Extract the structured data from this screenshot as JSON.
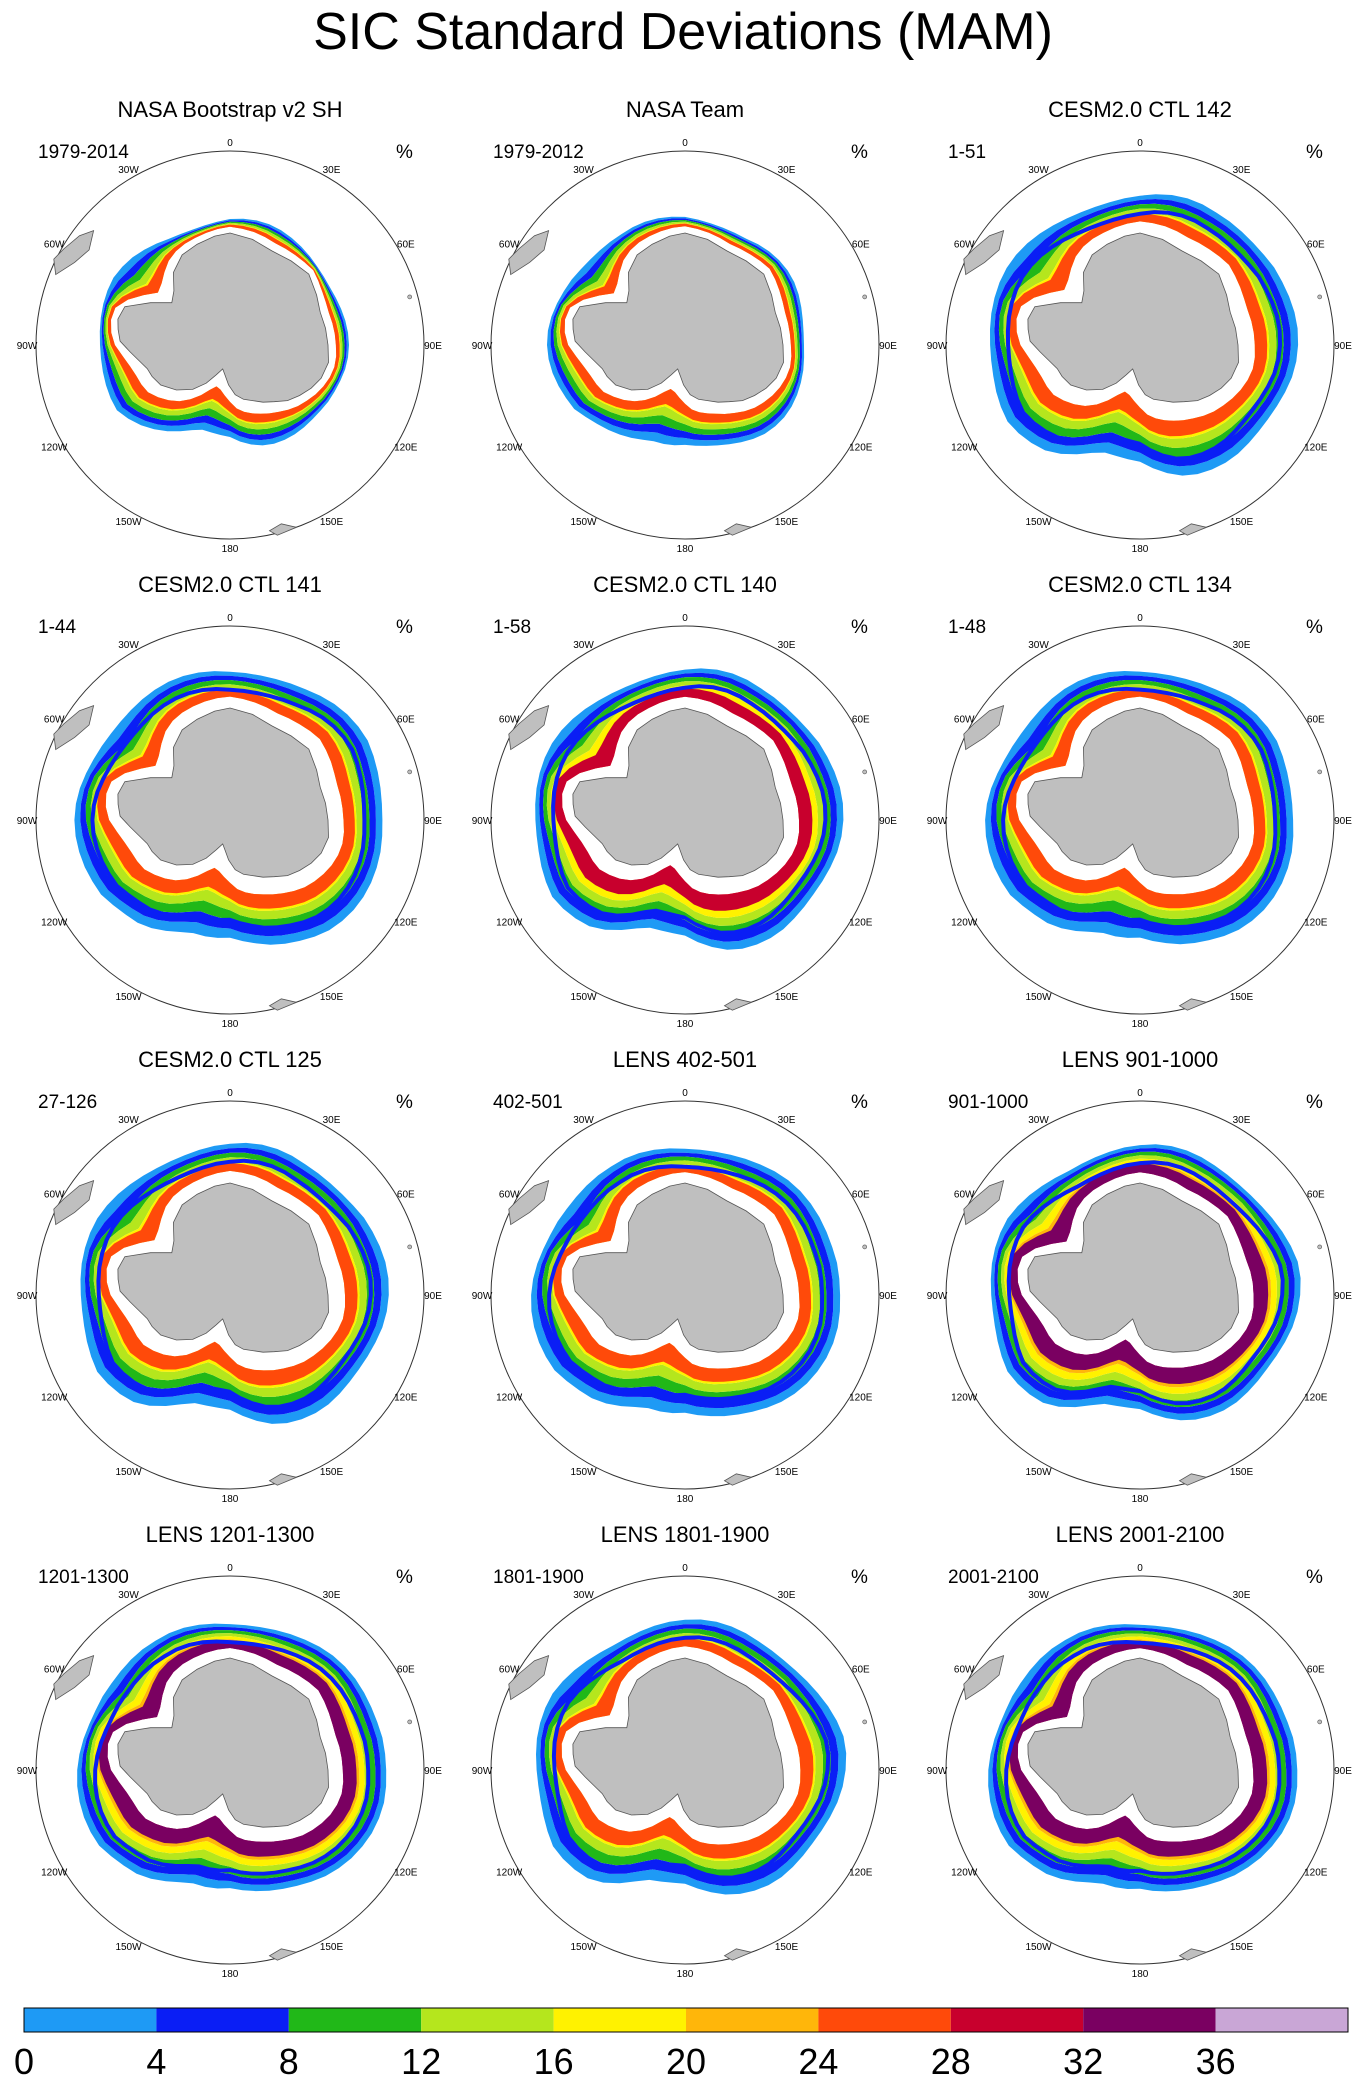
{
  "figure_title": "SIC Standard Deviations (MAM)",
  "units_symbol": "%",
  "longitude_labels": [
    "0",
    "30E",
    "60E",
    "90E",
    "120E",
    "150E",
    "180",
    "150W",
    "120W",
    "90W",
    "60W",
    "30W"
  ],
  "colors": {
    "land": "#bfbfbf",
    "coast": "#555555",
    "circle": "#333333",
    "background": "#ffffff"
  },
  "chart_data": {
    "type": "heatmap",
    "title": "SIC Standard Deviations (MAM)",
    "projection": "south polar stereographic",
    "units": "%",
    "colorbar": {
      "levels": [
        0,
        4,
        8,
        12,
        16,
        20,
        24,
        28,
        32,
        36
      ],
      "tick_labels": [
        "0",
        "4",
        "8",
        "12",
        "16",
        "20",
        "24",
        "28",
        "32",
        "36"
      ],
      "colors": [
        "#1e9af5",
        "#0a1ef5",
        "#21b818",
        "#b5e61d",
        "#fff200",
        "#ffb60a",
        "#ff4a0a",
        "#c8002d",
        "#7a0061",
        "#c9a6d6"
      ],
      "range": [
        0,
        40
      ]
    },
    "panels": [
      {
        "title": "NASA Bootstrap v2 SH",
        "period": "1979-2014",
        "max_sd": 24,
        "profile": "obs1"
      },
      {
        "title": "NASA Team",
        "period": "1979-2012",
        "max_sd": 24,
        "profile": "obs2"
      },
      {
        "title": "CESM2.0 CTL 142",
        "period": "1-51",
        "max_sd": 24,
        "profile": "model"
      },
      {
        "title": "CESM2.0 CTL 141",
        "period": "1-44",
        "max_sd": 24,
        "profile": "model"
      },
      {
        "title": "CESM2.0 CTL 140",
        "period": "1-58",
        "max_sd": 28,
        "profile": "model"
      },
      {
        "title": "CESM2.0 CTL 134",
        "period": "1-48",
        "max_sd": 24,
        "profile": "model"
      },
      {
        "title": "CESM2.0 CTL 125",
        "period": "27-126",
        "max_sd": 24,
        "profile": "model"
      },
      {
        "title": "LENS 402-501",
        "period": "402-501",
        "max_sd": 24,
        "profile": "lens"
      },
      {
        "title": "LENS 901-1000",
        "period": "901-1000",
        "max_sd": 32,
        "profile": "lens"
      },
      {
        "title": "LENS 1201-1300",
        "period": "1201-1300",
        "max_sd": 32,
        "profile": "lens"
      },
      {
        "title": "LENS 1801-1900",
        "period": "1801-1900",
        "max_sd": 24,
        "profile": "lens"
      },
      {
        "title": "LENS 2001-2100",
        "period": "2001-2100",
        "max_sd": 32,
        "profile": "lens"
      }
    ]
  }
}
